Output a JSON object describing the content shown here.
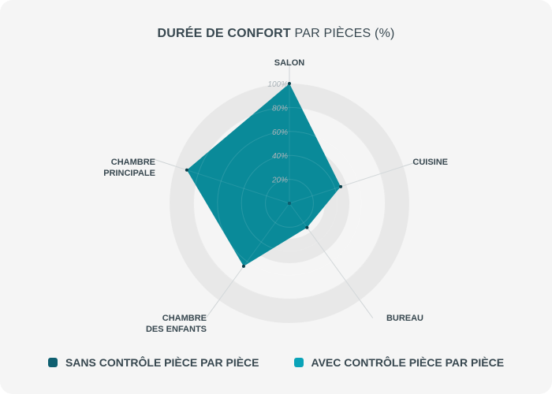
{
  "title": {
    "bold": "DURÉE DE CONFORT",
    "light": "PAR PIÈCES (%)"
  },
  "colors": {
    "series_a": "#0e5f70",
    "series_b": "#0aa3b8",
    "area": "#0a8a99",
    "band": "#e8e8e8",
    "axis_label": "#37474f",
    "tick_label": "#aab3b8",
    "spoke": "#cfd4d6"
  },
  "chart_data": {
    "type": "radar",
    "title": "DURÉE DE CONFORT PAR PIÈCES (%)",
    "axes": [
      "SALON",
      "CUISINE",
      "BUREAU",
      "CHAMBRE DES ENFANTS",
      "CHAMBRE PRINCIPALE"
    ],
    "axis_labels": [
      [
        "SALON"
      ],
      [
        "CUISINE"
      ],
      [
        "BUREAU"
      ],
      [
        "CHAMBRE",
        "DES ENFANTS"
      ],
      [
        "CHAMBRE",
        "PRINCIPALE"
      ]
    ],
    "ticks": [
      "20%",
      "40%",
      "60%",
      "80%",
      "100%"
    ],
    "tick_values": [
      20,
      40,
      60,
      80,
      100
    ],
    "range": [
      0,
      100
    ],
    "series": [
      {
        "name": "SANS CONTRÔLE PIÈCE PAR PIÈCE",
        "values": [
          0,
          0,
          0,
          0,
          0
        ]
      },
      {
        "name": "AVEC CONTRÔLE PIÈCE PAR PIÈCE",
        "values": [
          100,
          45,
          25,
          65,
          90
        ]
      }
    ]
  },
  "legend": [
    {
      "label": "SANS CONTRÔLE PIÈCE PAR PIÈCE",
      "color": "#0e5f70"
    },
    {
      "label": "AVEC CONTRÔLE PIÈCE PAR PIÈCE",
      "color": "#0aa3b8"
    }
  ]
}
